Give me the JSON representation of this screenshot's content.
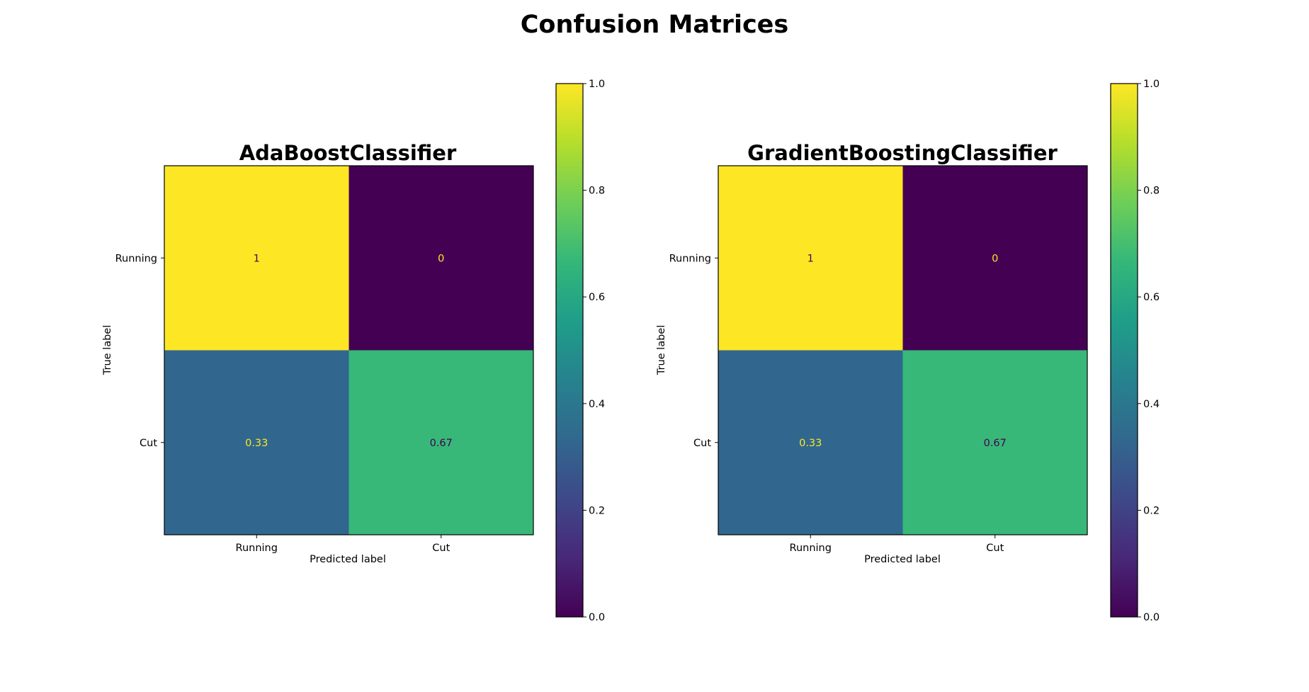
{
  "figure": {
    "title": "Confusion Matrices"
  },
  "colormap": {
    "name": "viridis",
    "stops": [
      "#440154",
      "#482878",
      "#3e4989",
      "#31688e",
      "#26828e",
      "#1f9e89",
      "#35b779",
      "#6ece58",
      "#b5de2b",
      "#fde725"
    ]
  },
  "chart_data": [
    {
      "type": "heatmap",
      "title": "AdaBoostClassifier",
      "xlabel": "Predicted label",
      "ylabel": "True label",
      "x_categories": [
        "Running",
        "Cut"
      ],
      "y_categories": [
        "Running",
        "Cut"
      ],
      "matrix": [
        [
          1,
          0
        ],
        [
          0.33,
          0.67
        ]
      ],
      "cell_labels": [
        [
          "1",
          "0"
        ],
        [
          "0.33",
          "0.67"
        ]
      ],
      "colorbar": {
        "range": [
          0.0,
          1.0
        ],
        "ticks": [
          0.0,
          0.2,
          0.4,
          0.6,
          0.8,
          1.0
        ],
        "tick_labels": [
          "0.0",
          "0.2",
          "0.4",
          "0.6",
          "0.8",
          "1.0"
        ]
      },
      "grid": false
    },
    {
      "type": "heatmap",
      "title": "GradientBoostingClassifier",
      "xlabel": "Predicted label",
      "ylabel": "True label",
      "x_categories": [
        "Running",
        "Cut"
      ],
      "y_categories": [
        "Running",
        "Cut"
      ],
      "matrix": [
        [
          1,
          0
        ],
        [
          0.33,
          0.67
        ]
      ],
      "cell_labels": [
        [
          "1",
          "0"
        ],
        [
          "0.33",
          "0.67"
        ]
      ],
      "colorbar": {
        "range": [
          0.0,
          1.0
        ],
        "ticks": [
          0.0,
          0.2,
          0.4,
          0.6,
          0.8,
          1.0
        ],
        "tick_labels": [
          "0.0",
          "0.2",
          "0.4",
          "0.6",
          "0.8",
          "1.0"
        ]
      },
      "grid": false
    }
  ]
}
